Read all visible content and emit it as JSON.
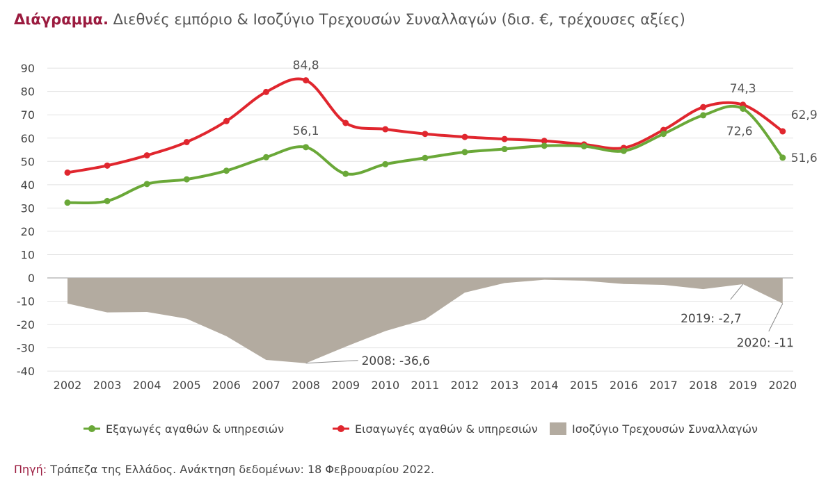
{
  "title": {
    "lead": "Διάγραμμα.",
    "text": "Διεθνές εμπόριο & Ισοζύγιο Τρεχουσών Συναλλαγών (δισ. €, τρέχουσες αξίες)"
  },
  "source": {
    "label": "Πηγή:",
    "text": "Τράπεζα της Ελλάδος. Ανάκτηση δεδομένων: 18 Φεβρουαρίου 2022."
  },
  "chart_data": {
    "type": "line",
    "title": "Διεθνές εμπόριο & Ισοζύγιο Τρεχουσών Συναλλαγών (δισ. €, τρέχουσες αξίες)",
    "ylim": [
      -40,
      90
    ],
    "yticks": [
      90,
      80,
      70,
      60,
      50,
      40,
      30,
      20,
      10,
      0,
      -10,
      -20,
      -30,
      -40
    ],
    "grid": true,
    "legend": "bottom",
    "categories": [
      "2002",
      "2003",
      "2004",
      "2005",
      "2006",
      "2007",
      "2008",
      "2009",
      "2010",
      "2011",
      "2012",
      "2013",
      "2014",
      "2015",
      "2016",
      "2017",
      "2018",
      "2019",
      "2020"
    ],
    "series": [
      {
        "name": "Εξαγωγές αγαθών & υπηρεσιών",
        "kind": "line",
        "color": "#6aa838",
        "values": [
          32.3,
          33,
          40.3,
          42.3,
          46,
          51.8,
          56.1,
          44.7,
          48.8,
          51.5,
          54,
          55.3,
          56.7,
          56.5,
          54.5,
          61.8,
          69.8,
          72.6,
          51.6
        ]
      },
      {
        "name": "Εισαγωγές αγαθών & υπηρεσιών",
        "kind": "line",
        "color": "#e0262e",
        "values": [
          45.2,
          48.2,
          52.6,
          58.3,
          67.3,
          79.8,
          84.8,
          66.5,
          63.8,
          61.8,
          60.5,
          59.6,
          58.8,
          57.3,
          55.8,
          63.5,
          73.3,
          74.3,
          62.9
        ]
      },
      {
        "name": "Ισοζύγιο Τρεχουσών Συναλλαγών",
        "kind": "area",
        "color": "#b3aba0",
        "values": [
          -11,
          -14.8,
          -14.6,
          -17.5,
          -25,
          -35.2,
          -36.6,
          -29.5,
          -22.8,
          -17.8,
          -6.3,
          -2.2,
          -0.8,
          -1.2,
          -2.6,
          -3,
          -4.8,
          -2.7,
          -11
        ]
      }
    ],
    "annotations": [
      {
        "text": "84,8",
        "series": 1,
        "category": "2008"
      },
      {
        "text": "56,1",
        "series": 0,
        "category": "2008"
      },
      {
        "text": "74,3",
        "series": 1,
        "category": "2019"
      },
      {
        "text": "72,6",
        "series": 0,
        "category": "2019"
      },
      {
        "text": "62,9",
        "series": 1,
        "category": "2020"
      },
      {
        "text": "51,6",
        "series": 0,
        "category": "2020"
      },
      {
        "text": "2008: -36,6",
        "series": 2,
        "category": "2008"
      },
      {
        "text": "2019: -2,7",
        "series": 2,
        "category": "2019"
      },
      {
        "text": "2020: -11",
        "series": 2,
        "category": "2020"
      }
    ]
  }
}
